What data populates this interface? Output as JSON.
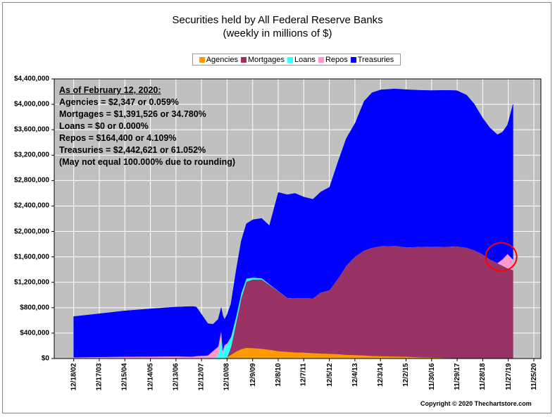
{
  "chart_data": {
    "type": "area",
    "title": "Securities held by All Federal Reserve Banks",
    "subtitle": "(weekly in millions of $)",
    "stacking": "stacked",
    "x_tick_labels": [
      "12/18/02",
      "12/17/03",
      "12/15/04",
      "12/14/05",
      "12/13/06",
      "12/12/07",
      "12/10/08",
      "12/9/09",
      "12/8/10",
      "12/7/11",
      "12/5/12",
      "12/4/13",
      "12/3/14",
      "12/2/15",
      "11/30/16",
      "11/29/17",
      "11/28/18",
      "11/27/19",
      "11/25/20"
    ],
    "y_tick_labels": [
      "$0",
      "$400,000",
      "$800,000",
      "$1,200,000",
      "$1,600,000",
      "$2,000,000",
      "$2,400,000",
      "$2,800,000",
      "$3,200,000",
      "$3,600,000",
      "$4,000,000",
      "$4,400,000"
    ],
    "ylim": [
      0,
      4400000
    ],
    "xlim": [
      2002.2,
      2021.2
    ],
    "x": [
      2002.96,
      2003.96,
      2004.96,
      2005.95,
      2006.95,
      2007.6,
      2007.75,
      2007.95,
      2008.2,
      2008.4,
      2008.6,
      2008.72,
      2008.78,
      2008.85,
      2008.95,
      2009.1,
      2009.3,
      2009.5,
      2009.7,
      2009.95,
      2010.3,
      2010.6,
      2010.95,
      2011.3,
      2011.6,
      2011.95,
      2012.3,
      2012.6,
      2012.95,
      2013.3,
      2013.6,
      2013.95,
      2014.3,
      2014.6,
      2014.95,
      2015.5,
      2015.95,
      2016.5,
      2016.92,
      2017.5,
      2017.92,
      2018.3,
      2018.6,
      2018.91,
      2019.2,
      2019.5,
      2019.7,
      2019.9,
      2020.11
    ],
    "series": [
      {
        "name": "Agencies",
        "color": "#ff9900",
        "values": [
          0,
          0,
          0,
          0,
          0,
          0,
          0,
          0,
          0,
          0,
          0,
          0,
          0,
          5000,
          20000,
          60000,
          110000,
          150000,
          170000,
          165000,
          155000,
          140000,
          118000,
          108000,
          99000,
          95000,
          86000,
          80000,
          76000,
          70000,
          60000,
          55000,
          50000,
          42000,
          38000,
          33000,
          30000,
          20000,
          17000,
          10000,
          6000,
          5000,
          4000,
          3000,
          2500,
          2400,
          2400,
          2350,
          2347
        ]
      },
      {
        "name": "Mortgages",
        "color": "#993366",
        "values": [
          0,
          0,
          0,
          0,
          0,
          0,
          0,
          0,
          0,
          0,
          0,
          0,
          0,
          0,
          0,
          120000,
          450000,
          800000,
          1040000,
          1080000,
          1090000,
          1020000,
          940000,
          850000,
          850000,
          855000,
          860000,
          960000,
          1000000,
          1200000,
          1400000,
          1550000,
          1650000,
          1700000,
          1730000,
          1740000,
          1720000,
          1740000,
          1740000,
          1750000,
          1760000,
          1740000,
          1700000,
          1640000,
          1560000,
          1500000,
          1460000,
          1420000,
          1391526
        ]
      },
      {
        "name": "Loans",
        "color": "#33ffff",
        "values": [
          0,
          0,
          0,
          0,
          0,
          0,
          0,
          0,
          0,
          0,
          50000,
          350000,
          80000,
          180000,
          200000,
          150000,
          100000,
          80000,
          50000,
          30000,
          20000,
          10000,
          5000,
          0,
          0,
          0,
          0,
          0,
          0,
          0,
          0,
          0,
          0,
          0,
          0,
          0,
          0,
          0,
          0,
          0,
          0,
          0,
          0,
          0,
          0,
          0,
          0,
          0,
          0
        ]
      },
      {
        "name": "Repos",
        "color": "#ff99cc",
        "values": [
          20000,
          25000,
          30000,
          32000,
          35000,
          30000,
          40000,
          45000,
          50000,
          120000,
          140000,
          100000,
          50000,
          30000,
          20000,
          10000,
          0,
          0,
          0,
          0,
          0,
          0,
          0,
          0,
          0,
          0,
          0,
          0,
          0,
          0,
          0,
          0,
          0,
          0,
          0,
          0,
          0,
          0,
          0,
          0,
          0,
          0,
          0,
          0,
          0,
          0,
          100000,
          225000,
          164400
        ]
      },
      {
        "name": "Treasuries",
        "color": "#0000ff",
        "values": [
          640000,
          680000,
          720000,
          750000,
          775000,
          790000,
          770000,
          650000,
          500000,
          420000,
          430000,
          350000,
          550000,
          400000,
          450000,
          520000,
          720000,
          820000,
          860000,
          910000,
          940000,
          920000,
          1550000,
          1620000,
          1650000,
          1590000,
          1560000,
          1580000,
          1620000,
          1850000,
          2000000,
          2100000,
          2350000,
          2440000,
          2460000,
          2470000,
          2480000,
          2460000,
          2460000,
          2460000,
          2450000,
          2400000,
          2300000,
          2150000,
          2070000,
          2020000,
          2000000,
          2030000,
          2442621
        ]
      }
    ],
    "annotations": {
      "heading": "As of February 12, 2020:",
      "lines": [
        "Agencies = $2,347 or 0.059%",
        "Mortgages = $1,391,526 or 34.780%",
        "Loans = $0 or 0.000%",
        "Repos = $164,400 or 4.109%",
        "Treasuries = $2,442,621 or 61.052%",
        "(May not equal 100.000% due to rounding)"
      ],
      "highlight": "red circle around repos spike, late 2019"
    },
    "grid": true,
    "legend_position": "top-center"
  },
  "colors": {
    "background": "#c0c0c0",
    "grid": "#ffffff",
    "highlight_circle": "#ff0000"
  },
  "copyright": "Copyright © 2020 Thechartstore.com"
}
